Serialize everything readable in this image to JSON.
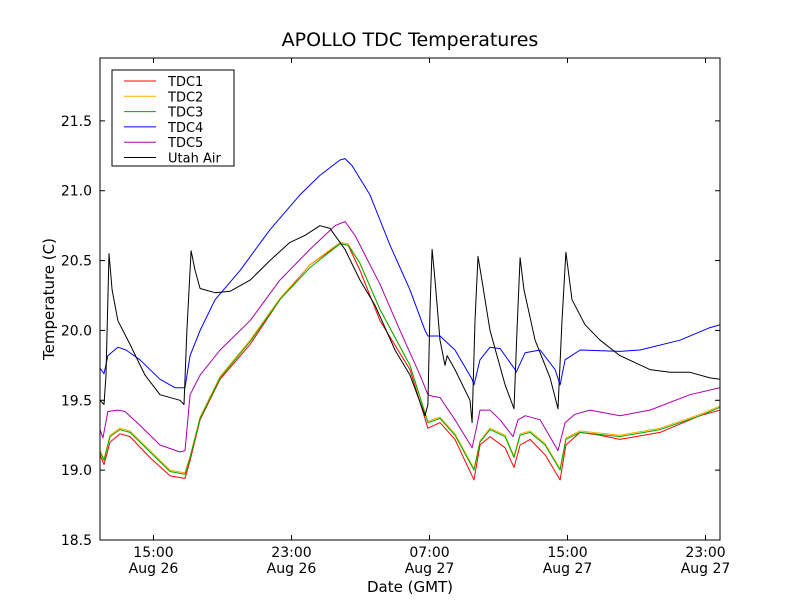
{
  "chart_data": {
    "type": "line",
    "title": "APOLLO TDC Temperatures",
    "xlabel": "Date (GMT)",
    "ylabel": "Temperature (C)",
    "x_units": "hours since Aug 26 00:00 GMT",
    "xlim": [
      11.9,
      47.84
    ],
    "ylim": [
      18.5,
      21.95
    ],
    "grid": false,
    "legend_position": "top-left",
    "xticks": [
      {
        "value": 15,
        "time": "15:00",
        "date": "Aug 26"
      },
      {
        "value": 23,
        "time": "23:00",
        "date": "Aug 26"
      },
      {
        "value": 31,
        "time": "07:00",
        "date": "Aug 27"
      },
      {
        "value": 39,
        "time": "15:00",
        "date": "Aug 27"
      },
      {
        "value": 47,
        "time": "23:00",
        "date": "Aug 27"
      }
    ],
    "yticks": [
      {
        "value": 18.5,
        "label": "18.5"
      },
      {
        "value": 19.0,
        "label": "19.0"
      },
      {
        "value": 19.5,
        "label": "19.5"
      },
      {
        "value": 20.0,
        "label": "20.0"
      },
      {
        "value": 20.5,
        "label": "20.5"
      },
      {
        "value": 21.0,
        "label": "21.0"
      },
      {
        "value": 21.5,
        "label": "21.5"
      }
    ],
    "series": [
      {
        "name": "TDC1",
        "color": "#ff0000",
        "points": [
          [
            11.9,
            19.11
          ],
          [
            12.13,
            19.04
          ],
          [
            12.48,
            19.2
          ],
          [
            13.06,
            19.26
          ],
          [
            13.64,
            19.24
          ],
          [
            14.8,
            19.09
          ],
          [
            15.96,
            18.96
          ],
          [
            16.83,
            18.94
          ],
          [
            17.12,
            19.07
          ],
          [
            17.7,
            19.36
          ],
          [
            18.86,
            19.65
          ],
          [
            20.6,
            19.9
          ],
          [
            22.33,
            20.22
          ],
          [
            24.07,
            20.47
          ],
          [
            25.81,
            20.62
          ],
          [
            26.28,
            20.61
          ],
          [
            26.97,
            20.43
          ],
          [
            28.13,
            20.07
          ],
          [
            29.87,
            19.72
          ],
          [
            30.91,
            19.3
          ],
          [
            31.61,
            19.34
          ],
          [
            32.48,
            19.22
          ],
          [
            33.58,
            18.93
          ],
          [
            33.93,
            19.18
          ],
          [
            34.51,
            19.24
          ],
          [
            35.38,
            19.16
          ],
          [
            35.9,
            19.02
          ],
          [
            36.25,
            19.18
          ],
          [
            36.83,
            19.22
          ],
          [
            37.7,
            19.11
          ],
          [
            38.57,
            18.93
          ],
          [
            38.91,
            19.18
          ],
          [
            39.73,
            19.27
          ],
          [
            40.89,
            19.25
          ],
          [
            42.04,
            19.22
          ],
          [
            44.36,
            19.27
          ],
          [
            46.68,
            19.39
          ],
          [
            47.84,
            19.43
          ]
        ]
      },
      {
        "name": "TDC2",
        "color": "#ffaa00",
        "points": [
          [
            11.9,
            19.14
          ],
          [
            12.13,
            19.08
          ],
          [
            12.48,
            19.25
          ],
          [
            13.06,
            19.3
          ],
          [
            13.64,
            19.28
          ],
          [
            14.8,
            19.14
          ],
          [
            15.96,
            19.0
          ],
          [
            16.83,
            18.98
          ],
          [
            17.12,
            19.1
          ],
          [
            17.7,
            19.38
          ],
          [
            18.86,
            19.67
          ],
          [
            20.6,
            19.93
          ],
          [
            22.33,
            20.23
          ],
          [
            24.07,
            20.47
          ],
          [
            25.81,
            20.63
          ],
          [
            26.28,
            20.62
          ],
          [
            26.97,
            20.48
          ],
          [
            28.13,
            20.15
          ],
          [
            29.87,
            19.75
          ],
          [
            30.91,
            19.35
          ],
          [
            31.61,
            19.38
          ],
          [
            32.48,
            19.26
          ],
          [
            33.58,
            19.01
          ],
          [
            33.93,
            19.21
          ],
          [
            34.51,
            19.3
          ],
          [
            35.38,
            19.25
          ],
          [
            35.9,
            19.1
          ],
          [
            36.25,
            19.26
          ],
          [
            36.83,
            19.28
          ],
          [
            37.7,
            19.19
          ],
          [
            38.57,
            19.01
          ],
          [
            38.91,
            19.23
          ],
          [
            39.73,
            19.28
          ],
          [
            42.04,
            19.25
          ],
          [
            44.36,
            19.3
          ],
          [
            46.68,
            19.4
          ],
          [
            47.84,
            19.46
          ]
        ]
      },
      {
        "name": "TDC3",
        "color": "#00aa00",
        "points": [
          [
            11.9,
            19.13
          ],
          [
            12.13,
            19.07
          ],
          [
            12.48,
            19.24
          ],
          [
            13.06,
            19.29
          ],
          [
            13.64,
            19.27
          ],
          [
            14.8,
            19.13
          ],
          [
            15.96,
            18.99
          ],
          [
            16.83,
            18.97
          ],
          [
            17.12,
            19.09
          ],
          [
            17.7,
            19.37
          ],
          [
            18.86,
            19.66
          ],
          [
            20.6,
            19.92
          ],
          [
            22.33,
            20.22
          ],
          [
            24.07,
            20.45
          ],
          [
            25.81,
            20.62
          ],
          [
            26.28,
            20.61
          ],
          [
            26.97,
            20.48
          ],
          [
            28.13,
            20.15
          ],
          [
            29.87,
            19.75
          ],
          [
            30.91,
            19.34
          ],
          [
            31.61,
            19.37
          ],
          [
            32.48,
            19.25
          ],
          [
            33.58,
            19.0
          ],
          [
            33.93,
            19.2
          ],
          [
            34.51,
            19.29
          ],
          [
            35.38,
            19.24
          ],
          [
            35.9,
            19.09
          ],
          [
            36.25,
            19.25
          ],
          [
            36.83,
            19.27
          ],
          [
            37.7,
            19.18
          ],
          [
            38.57,
            19.0
          ],
          [
            38.91,
            19.22
          ],
          [
            39.73,
            19.27
          ],
          [
            42.04,
            19.24
          ],
          [
            44.36,
            19.29
          ],
          [
            46.68,
            19.39
          ],
          [
            47.84,
            19.45
          ]
        ]
      },
      {
        "name": "TDC4",
        "color": "#0000ff",
        "points": [
          [
            11.9,
            19.73
          ],
          [
            12.13,
            19.69
          ],
          [
            12.36,
            19.82
          ],
          [
            12.94,
            19.88
          ],
          [
            13.41,
            19.86
          ],
          [
            14.22,
            19.79
          ],
          [
            15.38,
            19.65
          ],
          [
            16.25,
            19.59
          ],
          [
            16.83,
            19.59
          ],
          [
            17.12,
            19.82
          ],
          [
            17.7,
            20.0
          ],
          [
            18.57,
            20.22
          ],
          [
            20.02,
            20.43
          ],
          [
            21.75,
            20.72
          ],
          [
            23.49,
            20.97
          ],
          [
            24.65,
            21.11
          ],
          [
            25.81,
            21.22
          ],
          [
            26.1,
            21.23
          ],
          [
            26.51,
            21.18
          ],
          [
            27.55,
            20.97
          ],
          [
            28.71,
            20.61
          ],
          [
            29.87,
            20.29
          ],
          [
            30.74,
            20.0
          ],
          [
            30.91,
            19.96
          ],
          [
            31.61,
            19.96
          ],
          [
            32.48,
            19.86
          ],
          [
            33.47,
            19.65
          ],
          [
            33.58,
            19.61
          ],
          [
            33.93,
            19.79
          ],
          [
            34.51,
            19.88
          ],
          [
            35.09,
            19.87
          ],
          [
            35.96,
            19.72
          ],
          [
            36.02,
            19.7
          ],
          [
            36.54,
            19.84
          ],
          [
            37.41,
            19.86
          ],
          [
            38.28,
            19.72
          ],
          [
            38.57,
            19.61
          ],
          [
            38.86,
            19.79
          ],
          [
            39.73,
            19.86
          ],
          [
            42.04,
            19.85
          ],
          [
            43.2,
            19.86
          ],
          [
            45.52,
            19.93
          ],
          [
            47.26,
            20.02
          ],
          [
            47.84,
            20.04
          ]
        ]
      },
      {
        "name": "TDC5",
        "color": "#aa00aa",
        "points": [
          [
            11.9,
            19.29
          ],
          [
            12.07,
            19.23
          ],
          [
            12.36,
            19.42
          ],
          [
            12.94,
            19.43
          ],
          [
            13.35,
            19.42
          ],
          [
            14.22,
            19.32
          ],
          [
            15.38,
            19.18
          ],
          [
            16.54,
            19.13
          ],
          [
            16.83,
            19.14
          ],
          [
            17.12,
            19.54
          ],
          [
            17.7,
            19.68
          ],
          [
            18.86,
            19.86
          ],
          [
            20.6,
            20.07
          ],
          [
            22.33,
            20.36
          ],
          [
            24.07,
            20.58
          ],
          [
            25.52,
            20.75
          ],
          [
            26.1,
            20.78
          ],
          [
            26.68,
            20.68
          ],
          [
            28.13,
            20.33
          ],
          [
            29.29,
            20.0
          ],
          [
            30.45,
            19.68
          ],
          [
            30.91,
            19.54
          ],
          [
            31.15,
            19.53
          ],
          [
            31.61,
            19.52
          ],
          [
            32.48,
            19.36
          ],
          [
            33.47,
            19.16
          ],
          [
            33.7,
            19.29
          ],
          [
            33.93,
            19.43
          ],
          [
            34.51,
            19.43
          ],
          [
            35.09,
            19.36
          ],
          [
            35.84,
            19.24
          ],
          [
            36.13,
            19.36
          ],
          [
            36.54,
            19.39
          ],
          [
            37.41,
            19.36
          ],
          [
            38.45,
            19.14
          ],
          [
            38.86,
            19.34
          ],
          [
            39.43,
            19.4
          ],
          [
            40.31,
            19.43
          ],
          [
            42.04,
            19.39
          ],
          [
            43.78,
            19.43
          ],
          [
            46.1,
            19.54
          ],
          [
            47.84,
            19.59
          ]
        ]
      },
      {
        "name": "Utah Air",
        "color": "#000000",
        "points": [
          [
            11.9,
            19.5
          ],
          [
            12.13,
            19.47
          ],
          [
            12.25,
            19.68
          ],
          [
            12.42,
            20.55
          ],
          [
            12.6,
            20.29
          ],
          [
            12.94,
            20.07
          ],
          [
            13.64,
            19.9
          ],
          [
            14.51,
            19.68
          ],
          [
            15.38,
            19.54
          ],
          [
            16.54,
            19.5
          ],
          [
            16.77,
            19.47
          ],
          [
            16.94,
            20.0
          ],
          [
            17.18,
            20.57
          ],
          [
            17.41,
            20.43
          ],
          [
            17.7,
            20.3
          ],
          [
            18.57,
            20.27
          ],
          [
            19.44,
            20.28
          ],
          [
            20.6,
            20.36
          ],
          [
            21.75,
            20.5
          ],
          [
            22.91,
            20.63
          ],
          [
            23.78,
            20.68
          ],
          [
            24.65,
            20.75
          ],
          [
            25.23,
            20.73
          ],
          [
            26.1,
            20.58
          ],
          [
            26.97,
            20.36
          ],
          [
            27.84,
            20.18
          ],
          [
            29.0,
            19.86
          ],
          [
            29.87,
            19.68
          ],
          [
            30.74,
            19.39
          ],
          [
            30.91,
            19.47
          ],
          [
            31.03,
            20.15
          ],
          [
            31.15,
            20.58
          ],
          [
            31.32,
            20.36
          ],
          [
            31.61,
            19.93
          ],
          [
            31.9,
            19.75
          ],
          [
            32.02,
            19.82
          ],
          [
            32.48,
            19.72
          ],
          [
            33.35,
            19.5
          ],
          [
            33.47,
            19.34
          ],
          [
            33.64,
            20.07
          ],
          [
            33.81,
            20.53
          ],
          [
            34.04,
            20.36
          ],
          [
            34.51,
            20.0
          ],
          [
            35.38,
            19.61
          ],
          [
            35.9,
            19.44
          ],
          [
            36.07,
            20.0
          ],
          [
            36.25,
            20.52
          ],
          [
            36.48,
            20.29
          ],
          [
            37.12,
            19.93
          ],
          [
            37.99,
            19.66
          ],
          [
            38.45,
            19.44
          ],
          [
            38.68,
            20.07
          ],
          [
            38.91,
            20.56
          ],
          [
            39.26,
            20.22
          ],
          [
            40.02,
            20.04
          ],
          [
            40.89,
            19.93
          ],
          [
            42.04,
            19.82
          ],
          [
            43.78,
            19.72
          ],
          [
            44.94,
            19.7
          ],
          [
            46.1,
            19.7
          ],
          [
            47.26,
            19.66
          ],
          [
            47.84,
            19.65
          ]
        ]
      }
    ]
  }
}
